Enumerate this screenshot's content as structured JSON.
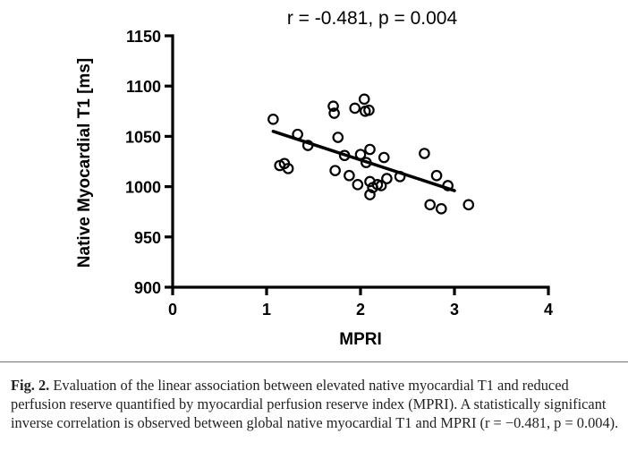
{
  "chart_data": {
    "type": "scatter",
    "title": "r = -0.481, p = 0.004",
    "xlabel": "MPRI",
    "ylabel": "Native Myocardial T1 [ms]",
    "xlim": [
      0,
      4
    ],
    "ylim": [
      900,
      1150
    ],
    "xticks": [
      "0",
      "1",
      "2",
      "3",
      "4"
    ],
    "yticks": [
      "900",
      "950",
      "1000",
      "1050",
      "1100",
      "1150"
    ],
    "grid": false,
    "points": [
      {
        "x": 1.07,
        "y": 1067
      },
      {
        "x": 1.14,
        "y": 1021
      },
      {
        "x": 1.19,
        "y": 1023
      },
      {
        "x": 1.23,
        "y": 1018
      },
      {
        "x": 1.33,
        "y": 1052
      },
      {
        "x": 1.44,
        "y": 1041
      },
      {
        "x": 1.71,
        "y": 1080
      },
      {
        "x": 1.72,
        "y": 1073
      },
      {
        "x": 1.73,
        "y": 1016
      },
      {
        "x": 1.76,
        "y": 1049
      },
      {
        "x": 1.83,
        "y": 1031
      },
      {
        "x": 1.88,
        "y": 1011
      },
      {
        "x": 1.94,
        "y": 1078
      },
      {
        "x": 1.97,
        "y": 1002
      },
      {
        "x": 2.0,
        "y": 1032
      },
      {
        "x": 2.04,
        "y": 1087
      },
      {
        "x": 2.05,
        "y": 1075
      },
      {
        "x": 2.06,
        "y": 1024
      },
      {
        "x": 2.09,
        "y": 1076
      },
      {
        "x": 2.1,
        "y": 1037
      },
      {
        "x": 2.1,
        "y": 1005
      },
      {
        "x": 2.1,
        "y": 992
      },
      {
        "x": 2.13,
        "y": 999
      },
      {
        "x": 2.18,
        "y": 1002
      },
      {
        "x": 2.22,
        "y": 1001
      },
      {
        "x": 2.25,
        "y": 1029
      },
      {
        "x": 2.28,
        "y": 1008
      },
      {
        "x": 2.42,
        "y": 1010
      },
      {
        "x": 2.68,
        "y": 1033
      },
      {
        "x": 2.74,
        "y": 982
      },
      {
        "x": 2.81,
        "y": 1011
      },
      {
        "x": 2.86,
        "y": 978
      },
      {
        "x": 2.93,
        "y": 1001
      },
      {
        "x": 3.15,
        "y": 982
      }
    ],
    "regression": {
      "x": [
        1.07,
        3.0
      ],
      "y": [
        1055,
        996
      ]
    }
  },
  "caption": {
    "label": "Fig. 2.",
    "text": "Evaluation of the linear association between elevated native myocardial T1 and reduced perfusion reserve quantified by myocardial perfusion reserve index (MPRI). A statistically significant inverse correlation is observed between global native myocardial T1 and MPRI (r = −0.481, p = 0.004)."
  }
}
